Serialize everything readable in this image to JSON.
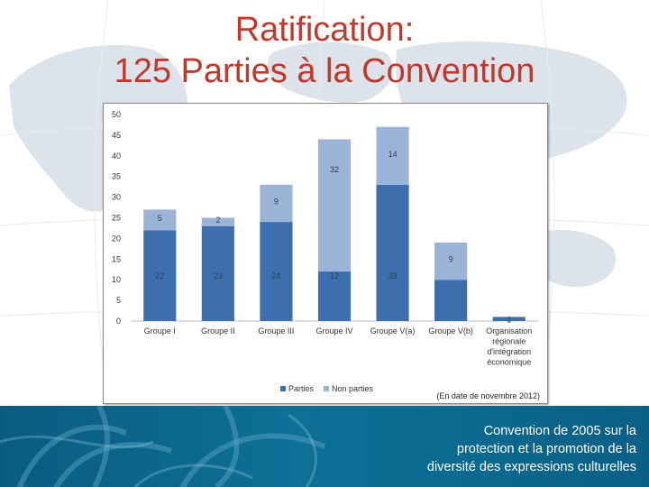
{
  "title": {
    "line1": "Ratification:",
    "line2": "125 Parties à la Convention"
  },
  "note": "(En date de novembre 2012)",
  "footer": {
    "lines": [
      "Convention de 2005 sur la",
      "protection et la promotion de la",
      "diversité des expressions culturelles"
    ]
  },
  "colors": {
    "title": "#c0392b",
    "parties": "#3d6faf",
    "non_parties": "#9cb3d8",
    "footer_bg": "#0d7096"
  },
  "chart_data": {
    "type": "bar",
    "stacked": true,
    "categories": [
      "Groupe I",
      "Groupe II",
      "Groupe III",
      "Groupe IV",
      "Groupe V(a)",
      "Groupe V(b)",
      "Organisation régionale d'intégration économique"
    ],
    "category_lines": [
      [
        "Groupe I"
      ],
      [
        "Groupe II"
      ],
      [
        "Groupe III"
      ],
      [
        "Groupe IV"
      ],
      [
        "Groupe V(a)"
      ],
      [
        "Groupe V(b)"
      ],
      [
        "Organisation",
        "régionale",
        "d'intégration",
        "économique"
      ]
    ],
    "series": [
      {
        "name": "Parties",
        "values": [
          22,
          23,
          24,
          12,
          33,
          10,
          1
        ],
        "color": "#3d6faf"
      },
      {
        "name": "Non parties",
        "values": [
          5,
          2,
          9,
          32,
          14,
          9,
          0
        ],
        "color": "#9cb3d8"
      }
    ],
    "ylim": [
      0,
      50
    ],
    "yticks": [
      0,
      5,
      10,
      15,
      20,
      25,
      30,
      35,
      40,
      45,
      50
    ],
    "legend_position": "bottom",
    "grid": false
  }
}
